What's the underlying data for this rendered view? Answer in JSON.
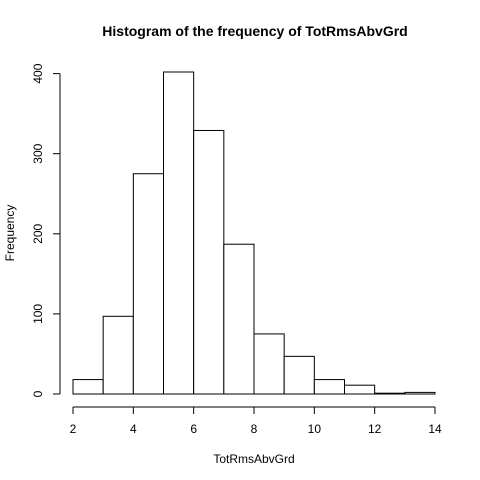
{
  "chart_data": {
    "type": "bar",
    "title": "Histogram of the frequency of TotRmsAbvGrd",
    "xlabel": "TotRmsAbvGrd",
    "ylabel": "Frequency",
    "bins": [
      {
        "start": 2,
        "end": 3,
        "count": 18
      },
      {
        "start": 3,
        "end": 4,
        "count": 97
      },
      {
        "start": 4,
        "end": 5,
        "count": 275
      },
      {
        "start": 5,
        "end": 6,
        "count": 402
      },
      {
        "start": 6,
        "end": 7,
        "count": 329
      },
      {
        "start": 7,
        "end": 8,
        "count": 187
      },
      {
        "start": 8,
        "end": 9,
        "count": 75
      },
      {
        "start": 9,
        "end": 10,
        "count": 47
      },
      {
        "start": 10,
        "end": 11,
        "count": 18
      },
      {
        "start": 11,
        "end": 12,
        "count": 11
      },
      {
        "start": 12,
        "end": 13,
        "count": 1
      },
      {
        "start": 13,
        "end": 14,
        "count": 2
      }
    ],
    "xlim": [
      2,
      14
    ],
    "ylim": [
      0,
      402
    ],
    "x_ticks": [
      2,
      4,
      6,
      8,
      10,
      12,
      14
    ],
    "y_ticks": [
      0,
      100,
      200,
      300,
      400
    ],
    "grid": false,
    "bar_fill": "#ffffff",
    "bar_stroke": "#000000"
  }
}
